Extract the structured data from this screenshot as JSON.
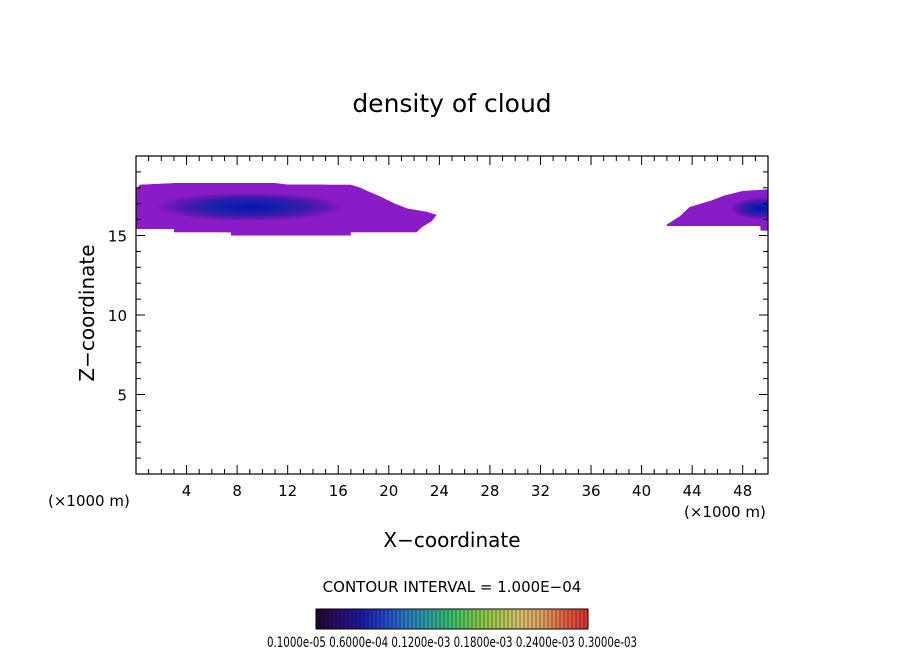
{
  "chart_data": {
    "type": "contour",
    "title": "density of cloud",
    "xlabel": "X−coordinate",
    "ylabel": "Z−coordinate",
    "x_unit_left": "(×1000 m)",
    "x_unit_right": "(×1000 m)",
    "xlim": [
      0,
      50
    ],
    "ylim": [
      0,
      20
    ],
    "x_ticks": [
      "4",
      "8",
      "12",
      "16",
      "20",
      "24",
      "28",
      "32",
      "36",
      "40",
      "44",
      "48"
    ],
    "y_ticks": [
      "5",
      "10",
      "15"
    ],
    "contour_interval_label": "CONTOUR INTERVAL = 1.000E−04",
    "colorbar_labels_text": "0.1000e-05 0.6000e-04 0.1200e-03 0.1800e-03 0.2400e-03 0.3000e-03",
    "colorbar_colors": [
      "#1a0a2e",
      "#2b0b6b",
      "#1a1aa0",
      "#2446c8",
      "#2a7ac0",
      "#2ea0a0",
      "#3cbf6a",
      "#74c84a",
      "#a8c850",
      "#d8c070",
      "#e0a060",
      "#e06040",
      "#d83030"
    ],
    "regions": [
      {
        "name": "cloud-left",
        "outline": [
          [
            0,
            17.9
          ],
          [
            0.3,
            18.2
          ],
          [
            3,
            18.3
          ],
          [
            11,
            18.3
          ],
          [
            12,
            18.2
          ],
          [
            17,
            18.2
          ],
          [
            17.8,
            18.0
          ],
          [
            18.3,
            17.8
          ],
          [
            19.2,
            17.5
          ],
          [
            20.5,
            17.0
          ],
          [
            21.5,
            16.7
          ],
          [
            23,
            16.5
          ],
          [
            23.8,
            16.3
          ],
          [
            23.4,
            15.9
          ],
          [
            22.6,
            15.5
          ],
          [
            22.2,
            15.2
          ],
          [
            17,
            15.2
          ],
          [
            17,
            15.0
          ],
          [
            7.5,
            15.0
          ],
          [
            7.5,
            15.2
          ],
          [
            3,
            15.2
          ],
          [
            3,
            15.4
          ],
          [
            0,
            15.4
          ]
        ],
        "core_center": [
          9,
          16.8
        ],
        "core_radii": [
          7.5,
          0.9
        ]
      },
      {
        "name": "cloud-right",
        "outline": [
          [
            42,
            15.7
          ],
          [
            43,
            16.2
          ],
          [
            43.8,
            16.8
          ],
          [
            45.5,
            17.2
          ],
          [
            46.5,
            17.5
          ],
          [
            48,
            17.8
          ],
          [
            50,
            17.9
          ],
          [
            50,
            15.3
          ],
          [
            49.4,
            15.3
          ],
          [
            49.4,
            15.6
          ],
          [
            42,
            15.6
          ]
        ],
        "core_center": [
          49.5,
          16.7
        ],
        "core_radii": [
          2.5,
          0.7
        ]
      }
    ]
  }
}
